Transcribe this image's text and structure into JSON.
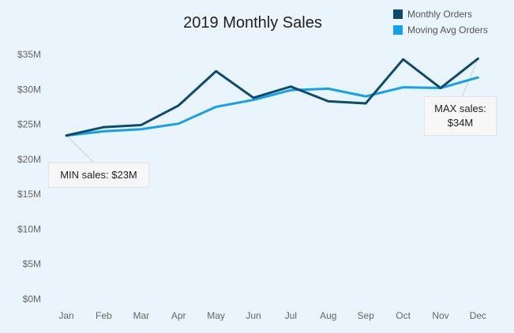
{
  "chart_data": {
    "type": "line",
    "title": "2019 Monthly Sales",
    "categories": [
      "Jan",
      "Feb",
      "Mar",
      "Apr",
      "May",
      "Jun",
      "Jul",
      "Aug",
      "Sep",
      "Oct",
      "Nov",
      "Dec"
    ],
    "series": [
      {
        "name": "Monthly Orders",
        "color": "#0d4a6b",
        "values": [
          23.4,
          24.6,
          24.9,
          27.7,
          32.6,
          28.8,
          30.4,
          28.3,
          28.0,
          34.3,
          30.2,
          34.4
        ]
      },
      {
        "name": "Moving Avg Orders",
        "color": "#13a0ec",
        "values": [
          23.4,
          24.0,
          24.3,
          25.1,
          27.5,
          28.5,
          29.9,
          30.1,
          29.0,
          30.3,
          30.2,
          31.7
        ]
      }
    ],
    "y_ticks": [
      0,
      5,
      10,
      15,
      20,
      25,
      30,
      35
    ],
    "y_tick_labels": [
      "$0M",
      "$5M",
      "$10M",
      "$15M",
      "$20M",
      "$25M",
      "$30M",
      "$35M"
    ],
    "ylim": [
      0,
      35
    ],
    "xlabel": "",
    "ylabel": "",
    "grid": false,
    "legend_position": "top-right",
    "annotations": [
      {
        "text": "MIN sales: $23M",
        "category": "Jan",
        "series": "Monthly Orders"
      },
      {
        "text": "MAX sales: $34M",
        "category": "Dec",
        "series": "Monthly Orders"
      }
    ]
  }
}
